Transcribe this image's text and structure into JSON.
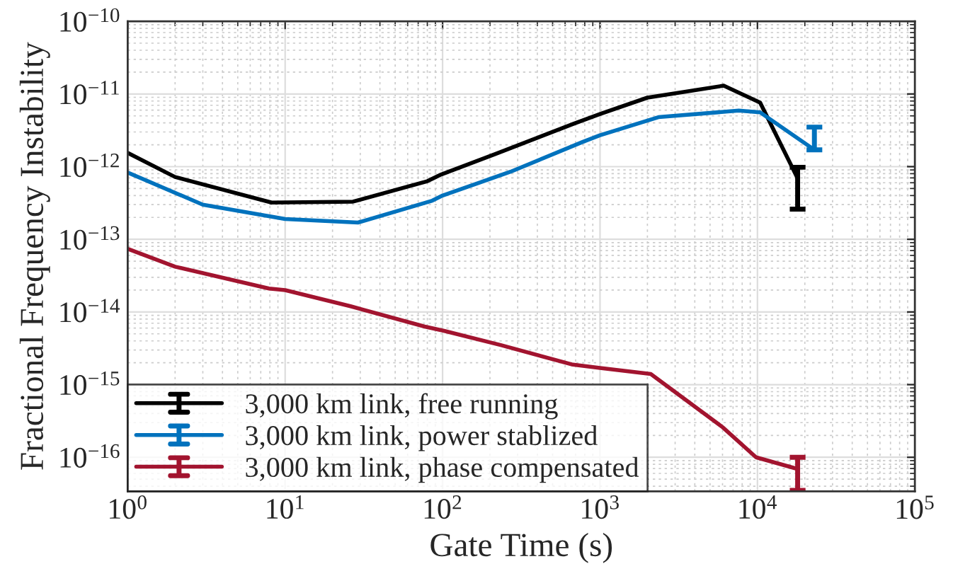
{
  "chart_data": {
    "type": "line",
    "xlabel": "Gate Time (s)",
    "ylabel": "Fractional Frequency Instability",
    "log": "xy",
    "grid": true,
    "legend": "bottom left",
    "marker": "none",
    "line_style": "solid",
    "xlim": [
      1,
      100000
    ],
    "ylim": [
      3.4e-17,
      1e-10
    ],
    "xticks": [
      {
        "value": 1,
        "label": "10$^{0}$"
      },
      {
        "value": 10,
        "label": "10$^{1}$"
      },
      {
        "value": 100,
        "label": "10$^{2}$"
      },
      {
        "value": 1000,
        "label": "10$^{3}$"
      },
      {
        "value": 10000,
        "label": "10$^{4}$"
      },
      {
        "value": 100000,
        "label": "10$^{5}$"
      }
    ],
    "yticks": [
      {
        "value": 1e-16,
        "label": "10$^{−16}$"
      },
      {
        "value": 1e-15,
        "label": "10$^{−15}$"
      },
      {
        "value": 1e-14,
        "label": "10$^{−14}$"
      },
      {
        "value": 1e-13,
        "label": "10$^{−13}$"
      },
      {
        "value": 1e-12,
        "label": "10$^{−12}$"
      },
      {
        "value": 1e-11,
        "label": "10$^{−11}$"
      },
      {
        "value": 1e-10,
        "label": "10$^{−10}$"
      }
    ],
    "series": [
      {
        "name": "3,000 km link, free running",
        "color": "#000000",
        "x": [
          1,
          2,
          8.2,
          27,
          80,
          98,
          218,
          680,
          1000,
          2000,
          6100,
          10400,
          18000
        ],
        "values": [
          1.55e-12,
          7.2e-13,
          3.2e-13,
          3.3e-13,
          6.3e-13,
          7.8e-13,
          1.5e-12,
          3.9e-12,
          5.3e-12,
          8.9e-12,
          1.3e-11,
          7.6e-12,
          6.9e-13
        ],
        "errors": [
          null,
          null,
          null,
          null,
          null,
          null,
          null,
          null,
          null,
          null,
          null,
          null,
          [
            2.6e-13,
            9.8e-13
          ]
        ]
      },
      {
        "name": "3,000 km link, power stablized",
        "color": "#0072bd",
        "x": [
          1,
          3,
          10,
          29,
          86,
          100,
          270,
          780,
          1000,
          2350,
          7600,
          10400,
          23000
        ],
        "values": [
          8.3e-13,
          3e-13,
          1.9e-13,
          1.7e-13,
          3.4e-13,
          4e-13,
          8.5e-13,
          2.2e-12,
          2.7e-12,
          4.8e-12,
          5.9e-12,
          5.6e-12,
          1.7e-12
        ],
        "errors": [
          null,
          null,
          null,
          null,
          null,
          null,
          null,
          null,
          null,
          null,
          null,
          null,
          [
            1.7e-12,
            3.5e-12
          ]
        ]
      },
      {
        "name": "3,000 km link, phase compensated",
        "color": "#a2142f",
        "x": [
          1,
          2,
          7.9,
          10,
          26,
          77,
          102,
          234,
          660,
          1000,
          2100,
          6000,
          9800,
          18000
        ],
        "values": [
          7.4e-14,
          4.2e-14,
          2.1e-14,
          2e-14,
          1.2e-14,
          6.3e-15,
          5.5e-15,
          3.5e-15,
          1.9e-15,
          1.7e-15,
          1.4e-15,
          2.6e-16,
          1e-16,
          6.9e-17
        ],
        "errors": [
          null,
          null,
          null,
          null,
          null,
          null,
          null,
          null,
          null,
          null,
          null,
          null,
          null,
          [
            3.5e-17,
            1e-16
          ]
        ]
      }
    ]
  }
}
